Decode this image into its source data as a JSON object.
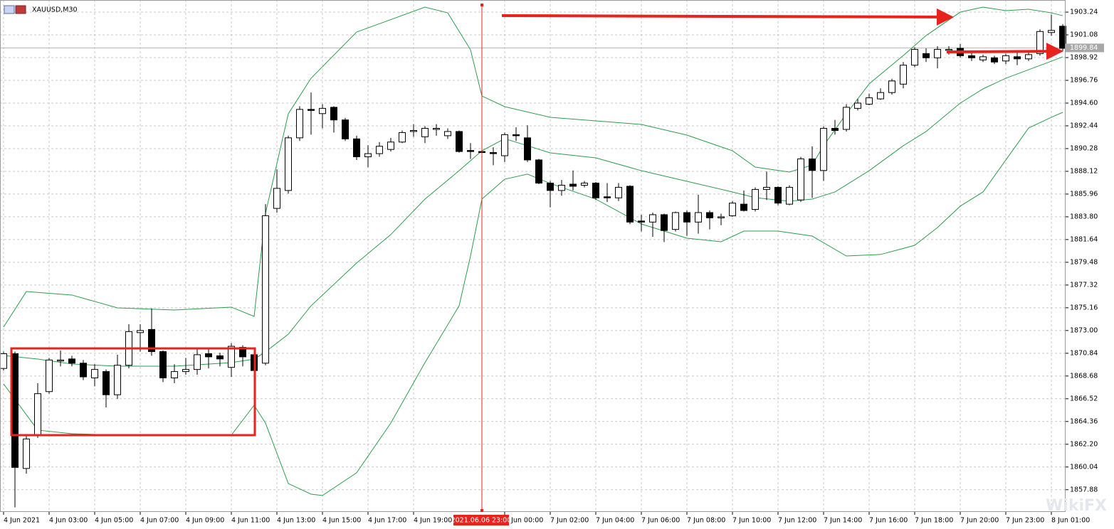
{
  "chart_data": {
    "type": "candlestick",
    "title": "XAUUSD,M30",
    "categories": [
      "4 Jun 2021",
      null,
      null,
      null,
      "4 Jun 03:00",
      null,
      null,
      null,
      "4 Jun 05:00",
      null,
      null,
      null,
      "4 Jun 07:00",
      null,
      null,
      null,
      "4 Jun 09:00",
      null,
      null,
      null,
      "4 Jun 11:00",
      null,
      null,
      null,
      "4 Jun 13:00",
      null,
      null,
      null,
      "4 Jun 15:00",
      null,
      null,
      null,
      "4 Jun 17:00",
      null,
      null,
      null,
      "4 Jun 19:00",
      null,
      null,
      null,
      null,
      null,
      null,
      null,
      "7 Jun 00:00",
      null,
      null,
      null,
      "7 Jun 02:00",
      null,
      null,
      null,
      "7 Jun 04:00",
      null,
      null,
      null,
      "7 Jun 06:00",
      null,
      null,
      null,
      "7 Jun 08:00",
      null,
      null,
      null,
      "7 Jun 10:00",
      null,
      null,
      null,
      "7 Jun 12:00",
      null,
      null,
      null,
      "7 Jun 14:00",
      null,
      null,
      null,
      "7 Jun 16:00",
      null,
      null,
      null,
      "7 Jun 18:00",
      null,
      null,
      null,
      "7 Jun 20:00",
      null,
      null,
      null,
      "7 Jun 23:00",
      null,
      null,
      null,
      "8 Jun 01:00",
      null
    ],
    "open": [
      1869.4,
      1870.8,
      1859.9,
      1863.0,
      1867.2,
      1870.1,
      1870.3,
      1869.9,
      1868.5,
      1869.1,
      1866.9,
      1869.7,
      1872.8,
      1873.1,
      1871.0,
      1868.5,
      1869.1,
      1869.3,
      1870.8,
      1870.6,
      1869.5,
      1871.4,
      1870.7,
      1869.9,
      1884.6,
      1886.3,
      1891.3,
      1894.0,
      1893.6,
      1894.2,
      1893.0,
      1891.2,
      1889.5,
      1889.8,
      1890.2,
      1890.9,
      1891.9,
      1891.4,
      1892.1,
      1891.5,
      1891.9,
      1890.1,
      1890.0,
      1889.9,
      1889.6,
      1891.6,
      1891.3,
      1889.2,
      1887.0,
      1886.3,
      1886.9,
      1886.8,
      1887.0,
      1885.7,
      1885.6,
      1886.7,
      1883.4,
      1883.3,
      1884.0,
      1882.6,
      1884.2,
      1883.3,
      1884.2,
      1883.7,
      1883.9,
      1885.0,
      1884.5,
      1886.4,
      1886.6,
      1885.0,
      1885.4,
      1889.3,
      1888.2,
      1892.2,
      1892.1,
      1894.1,
      1894.5,
      1895.0,
      1895.6,
      1896.4,
      1898.2,
      1899.3,
      1898.9,
      1899.6,
      1899.8,
      1899.1,
      1898.7,
      1898.9,
      1898.6,
      1899.0,
      1898.8,
      1899.3,
      1901.3,
      1901.9
    ],
    "high": [
      1871.0,
      1871.0,
      1863.0,
      1868.0,
      1870.4,
      1871.1,
      1870.6,
      1870.2,
      1869.8,
      1869.3,
      1870.7,
      1873.6,
      1873.6,
      1875.1,
      1871.1,
      1869.8,
      1870.4,
      1871.2,
      1871.3,
      1870.9,
      1871.8,
      1871.6,
      1871.0,
      1885.0,
      1888.3,
      1891.5,
      1894.3,
      1895.6,
      1894.5,
      1894.3,
      1893.2,
      1891.5,
      1890.6,
      1890.9,
      1891.3,
      1892.0,
      1892.6,
      1892.4,
      1892.6,
      1892.2,
      1892.0,
      1890.8,
      1890.3,
      1890.4,
      1891.8,
      1892.3,
      1892.5,
      1889.3,
      1887.2,
      1887.3,
      1888.2,
      1887.2,
      1887.1,
      1887.0,
      1887.0,
      1886.8,
      1884.0,
      1884.2,
      1884.1,
      1884.3,
      1884.4,
      1885.9,
      1884.4,
      1884.1,
      1885.3,
      1886.3,
      1886.6,
      1888.1,
      1886.7,
      1886.8,
      1889.5,
      1890.5,
      1892.4,
      1893.0,
      1894.5,
      1895.0,
      1895.5,
      1896.0,
      1896.9,
      1898.5,
      1899.9,
      1899.8,
      1900.0,
      1900.0,
      1900.2,
      1899.5,
      1899.2,
      1899.1,
      1899.3,
      1899.4,
      1899.6,
      1901.6,
      1903.0,
      1902.1
    ],
    "low": [
      1869.2,
      1856.2,
      1859.4,
      1862.8,
      1867.0,
      1869.6,
      1869.6,
      1868.3,
      1867.7,
      1865.7,
      1866.5,
      1869.4,
      1871.0,
      1870.6,
      1868.1,
      1868.0,
      1868.8,
      1868.8,
      1869.4,
      1869.6,
      1868.6,
      1869.6,
      1868.4,
      1869.7,
      1884.2,
      1886.0,
      1891.0,
      1891.6,
      1892.2,
      1891.8,
      1891.0,
      1889.2,
      1888.5,
      1889.5,
      1890.0,
      1890.8,
      1891.4,
      1890.8,
      1891.5,
      1891.2,
      1889.9,
      1889.3,
      1889.5,
      1888.7,
      1889.0,
      1891.0,
      1889.0,
      1886.9,
      1884.7,
      1885.8,
      1886.3,
      1886.6,
      1885.4,
      1885.2,
      1885.3,
      1883.1,
      1882.4,
      1881.9,
      1881.4,
      1882.4,
      1882.0,
      1882.2,
      1882.6,
      1883.0,
      1883.8,
      1884.3,
      1884.3,
      1885.4,
      1884.9,
      1884.9,
      1885.2,
      1885.6,
      1887.2,
      1891.6,
      1891.9,
      1893.9,
      1894.4,
      1894.9,
      1895.4,
      1896.0,
      1898.0,
      1898.5,
      1897.9,
      1899.2,
      1898.9,
      1898.6,
      1898.5,
      1898.3,
      1898.3,
      1898.2,
      1898.6,
      1899.1,
      1901.0,
      1899.5
    ],
    "close": [
      1870.8,
      1860.0,
      1862.7,
      1867.0,
      1870.2,
      1870.2,
      1869.9,
      1868.6,
      1869.3,
      1866.9,
      1869.7,
      1872.9,
      1873.0,
      1871.0,
      1868.5,
      1869.1,
      1869.3,
      1870.7,
      1870.5,
      1870.3,
      1871.5,
      1870.5,
      1869.2,
      1883.9,
      1886.5,
      1891.3,
      1894.0,
      1893.9,
      1894.1,
      1893.0,
      1891.2,
      1889.5,
      1889.8,
      1890.5,
      1890.9,
      1891.8,
      1892.0,
      1892.2,
      1892.2,
      1891.9,
      1890.0,
      1890.0,
      1889.9,
      1889.8,
      1891.6,
      1891.5,
      1889.2,
      1887.0,
      1886.3,
      1886.8,
      1886.7,
      1887.0,
      1885.6,
      1885.6,
      1886.6,
      1883.3,
      1883.3,
      1884.0,
      1882.5,
      1884.2,
      1883.3,
      1884.2,
      1883.7,
      1883.8,
      1885.1,
      1884.4,
      1886.4,
      1886.6,
      1885.1,
      1886.6,
      1889.3,
      1888.2,
      1892.2,
      1892.0,
      1894.2,
      1894.6,
      1895.1,
      1895.6,
      1896.7,
      1898.2,
      1899.7,
      1898.9,
      1899.7,
      1899.7,
      1899.1,
      1898.9,
      1899.0,
      1898.5,
      1899.1,
      1898.8,
      1899.2,
      1901.4,
      1901.5,
      1899.8
    ],
    "bands": [
      {
        "color": "#2e9b4f",
        "x": [
          0,
          2,
          6,
          10,
          15,
          20,
          22,
          23,
          25,
          27,
          31,
          37,
          39,
          41,
          42,
          44,
          48,
          52,
          56,
          60,
          64,
          66,
          69,
          71,
          72,
          74,
          76,
          79,
          81,
          84,
          86,
          88,
          90,
          92,
          93
        ],
        "values": [
          1873.33,
          1876.7,
          1876.37,
          1875.15,
          1874.95,
          1875.22,
          1874.34,
          1884.13,
          1893.58,
          1896.96,
          1901.35,
          1903.71,
          1903.17,
          1899.66,
          1895.27,
          1894.26,
          1893.25,
          1892.91,
          1892.57,
          1891.56,
          1890.07,
          1888.52,
          1888.05,
          1888.72,
          1890.55,
          1893.58,
          1896.42,
          1899.12,
          1901.01,
          1903.24,
          1903.71,
          1903.38,
          1903.51,
          1903.17,
          1902.9
        ]
      },
      {
        "color": "#2e9b4f",
        "x": [
          0,
          3,
          6,
          10,
          15,
          20,
          22,
          23,
          25,
          27,
          31,
          34,
          37,
          40,
          42,
          44,
          46,
          48,
          52,
          56,
          60,
          64,
          66,
          69,
          71,
          73,
          76,
          79,
          81,
          84,
          86,
          88,
          90,
          92,
          93
        ],
        "values": [
          1870.63,
          1870.29,
          1869.82,
          1869.61,
          1869.61,
          1869.95,
          1870.29,
          1870.97,
          1872.65,
          1875.35,
          1879.41,
          1882.11,
          1885.48,
          1888.18,
          1890.07,
          1891.22,
          1890.55,
          1889.87,
          1889.4,
          1888.18,
          1887.17,
          1886.16,
          1885.62,
          1885.28,
          1885.48,
          1886.16,
          1888.18,
          1890.55,
          1891.9,
          1894.6,
          1895.95,
          1896.96,
          1897.77,
          1898.58,
          1898.99
        ]
      },
      {
        "color": "#2e9b4f",
        "x": [
          0,
          3,
          6,
          10,
          15,
          20,
          22,
          23,
          25,
          27,
          28,
          31,
          34,
          37,
          40,
          41,
          42,
          44,
          46,
          48,
          52,
          56,
          60,
          63,
          65,
          68,
          71,
          74,
          77,
          80,
          82,
          84,
          86,
          90,
          92,
          93
        ],
        "values": [
          1867.93,
          1863.54,
          1863.2,
          1863.07,
          1863.0,
          1863.07,
          1865.9,
          1864.21,
          1858.47,
          1857.46,
          1857.33,
          1859.49,
          1864.21,
          1869.95,
          1875.35,
          1880.08,
          1885.48,
          1887.37,
          1887.85,
          1886.97,
          1885.48,
          1883.12,
          1881.77,
          1881.43,
          1882.44,
          1882.44,
          1881.97,
          1880.08,
          1880.22,
          1881.09,
          1882.78,
          1884.81,
          1886.16,
          1892.23,
          1893.25,
          1893.72
        ]
      }
    ],
    "ylim": [
      1855.77,
      1904.39
    ],
    "yticks": [
      {
        "value": 1857.88,
        "label": "1857.88"
      },
      1860.04,
      {
        "value": 1862.2,
        "label": "1862.20"
      },
      1864.36,
      1866.52,
      1868.68,
      1870.84,
      {
        "value": 1873,
        "label": "1873.00"
      },
      1875.16,
      1877.32,
      1879.48,
      1881.64,
      {
        "value": 1883.8,
        "label": "1883.80"
      },
      1885.96,
      1888.12,
      1890.28,
      1892.44,
      {
        "value": 1894.6,
        "label": "1894.60"
      },
      1896.76,
      1898.92,
      1901.08,
      1903.24
    ],
    "grid": true,
    "last_price": 1899.84,
    "crosshair_label": "2021.06.06 23:00",
    "watermark": "WikiFX"
  }
}
